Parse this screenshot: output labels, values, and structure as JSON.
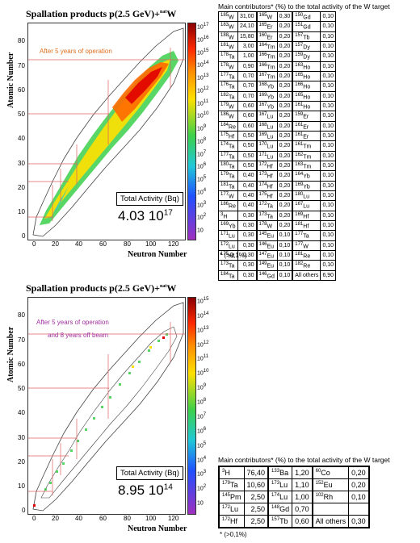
{
  "top_chart": {
    "title": "Spallation products  p(2.5 GeV)+",
    "title_target": "W",
    "title_target_sup": "nat",
    "ylabel": "Atomic Number",
    "xlabel": "Neutron Number",
    "note": "After 5 years of operation",
    "activity_label": "Total Activity (Bq)",
    "activity_mantissa": "4.03 10",
    "activity_exp": "17",
    "xticks": [
      "0",
      "20",
      "40",
      "60",
      "80",
      "100",
      "120"
    ],
    "yticks": [
      "0",
      "10",
      "20",
      "30",
      "40",
      "50",
      "60",
      "70",
      "80"
    ],
    "colorbar": [
      "10",
      "10",
      "10",
      "10",
      "10",
      "10",
      "10",
      "10",
      "10",
      "10",
      "10",
      "10",
      "10",
      "10",
      "10",
      "10",
      "10"
    ],
    "colorbar_exp": [
      "17",
      "16",
      "15",
      "14",
      "13",
      "12",
      "11",
      "10",
      "9",
      "8",
      "7",
      "6",
      "5",
      "4",
      "3",
      "2",
      ""
    ],
    "magic_labels": [
      "82",
      "126",
      "50",
      "82",
      "28",
      "50",
      "20",
      "28",
      "8",
      "20"
    ]
  },
  "bottom_chart": {
    "title": "Spallation products  p(2.5 GeV)+",
    "title_target": "W",
    "title_target_sup": "nat",
    "ylabel": "Atomic Number",
    "xlabel": "Neutron Number",
    "note1": "After 5 years of operation",
    "note2": "and 8 years off beam",
    "activity_label": "Total Activity (Bq)",
    "activity_mantissa": "8.95 10",
    "activity_exp": "14",
    "xticks": [
      "0",
      "20",
      "40",
      "60",
      "80",
      "100",
      "120"
    ],
    "yticks": [
      "0",
      "10",
      "20",
      "30",
      "40",
      "50",
      "60",
      "70",
      "80"
    ],
    "colorbar": [
      "10",
      "10",
      "10",
      "10",
      "10",
      "10",
      "10",
      "10",
      "10",
      "10",
      "10",
      "10",
      "10",
      "10",
      "10"
    ],
    "colorbar_exp": [
      "15",
      "14",
      "13",
      "12",
      "11",
      "10",
      "9",
      "8",
      "7",
      "6",
      "5",
      "4",
      "3",
      "2",
      ""
    ],
    "magic_labels": [
      "82",
      "126",
      "50",
      "82",
      "28",
      "50",
      "20",
      "28",
      "8",
      "20"
    ]
  },
  "table1": {
    "title": "Main contributors* (%) to the total activity of the W target",
    "footnote": "*  (>0,1%)",
    "rows": [
      [
        "185",
        "W",
        "31,00",
        "165",
        "W",
        "0,30",
        "150",
        "Gd",
        "0,10"
      ],
      [
        "183",
        "W",
        "24,10",
        "165",
        "Er",
        "0,20",
        "151",
        "Gd",
        "0,10"
      ],
      [
        "188",
        "W",
        "15,80",
        "160",
        "Er",
        "0,20",
        "157",
        "Tb",
        "0,10"
      ],
      [
        "181",
        "W",
        "3,00",
        "164",
        "Tm",
        "0,20",
        "157",
        "Dy",
        "0,10"
      ],
      [
        "178",
        "Ta",
        "1,00",
        "166",
        "Tm",
        "0,20",
        "159",
        "Dy",
        "0,10"
      ],
      [
        "178",
        "W",
        "0,90",
        "166",
        "Tm",
        "0,20",
        "163",
        "Ho",
        "0,10"
      ],
      [
        "177",
        "Ta",
        "0,70",
        "167",
        "Tm",
        "0,20",
        "165",
        "Ho",
        "0,10"
      ],
      [
        "176",
        "Ta",
        "0,70",
        "168",
        "Yb",
        "0,20",
        "166",
        "Ho",
        "0,10"
      ],
      [
        "182",
        "Ta",
        "0,70",
        "169",
        "Yb",
        "0,20",
        "165",
        "Ho",
        "0,10"
      ],
      [
        "179",
        "W",
        "0,60",
        "167",
        "Yb",
        "0,20",
        "161",
        "Ho",
        "0,10"
      ],
      [
        "186",
        "W",
        "0,60",
        "167",
        "Lu",
        "0,20",
        "159",
        "Er",
        "0,10"
      ],
      [
        "184",
        "Re",
        "0,60",
        "168",
        "Lu",
        "0,20",
        "161",
        "Er",
        "0,10"
      ],
      [
        "175",
        "Hf",
        "0,50",
        "169",
        "Lu",
        "0,20",
        "161",
        "Er",
        "0,10"
      ],
      [
        "174",
        "Ta",
        "0,50",
        "170",
        "Lu",
        "0,20",
        "161",
        "Tm",
        "0,10"
      ],
      [
        "177",
        "Ta",
        "0,50",
        "171",
        "Lu",
        "0,20",
        "162",
        "Tm",
        "0,10"
      ],
      [
        "180",
        "Ta",
        "0,50",
        "172",
        "Hf",
        "0,20",
        "163",
        "Tm",
        "0,10"
      ],
      [
        "179",
        "Ta",
        "0,40",
        "173",
        "Hf",
        "0,20",
        "164",
        "Yb",
        "0,10"
      ],
      [
        "181",
        "Ta",
        "0,40",
        "174",
        "Hf",
        "0,20",
        "169",
        "Yb",
        "0,10"
      ],
      [
        "177",
        "W",
        "0,40",
        "175",
        "Hf",
        "0,20",
        "180",
        "Lu",
        "0,10"
      ],
      [
        "186",
        "Re",
        "0,40",
        "172",
        "Ta",
        "0,20",
        "167",
        "Lu",
        "0,10"
      ],
      [
        "3",
        "H",
        "0,30",
        "173",
        "Ta",
        "0,20",
        "169",
        "Hf",
        "0,10"
      ],
      [
        "169",
        "Yb",
        "0,30",
        "178",
        "W",
        "0,20",
        "181",
        "Hf",
        "0,10"
      ],
      [
        "171",
        "Lu",
        "0,30",
        "145",
        "Eu",
        "0,10",
        "177",
        "Ta",
        "0,10"
      ],
      [
        "172",
        "Lu",
        "0,30",
        "146",
        "Eu",
        "0,10",
        "177",
        "W",
        "0,10"
      ],
      [
        "175",
        "Hf",
        "0,30",
        "147",
        "Eu",
        "0,10",
        "181",
        "Re",
        "0,10"
      ],
      [
        "173",
        "Ta",
        "0,30",
        "149",
        "Eu",
        "0,10",
        "182",
        "Re",
        "0,10"
      ],
      [
        "184",
        "Ta",
        "0,30",
        "146",
        "Gd",
        "0,10",
        "",
        "All others",
        "6,90"
      ]
    ]
  },
  "table2": {
    "title": "Main contributors* (%) to the total activity of the W target",
    "footnote": "*  (>0,1%)",
    "rows": [
      [
        "3",
        "H",
        "76,40",
        "133",
        "Ba",
        "1,20",
        "60",
        "Co",
        "0,20"
      ],
      [
        "179",
        "Ta",
        "10,60",
        "173",
        "Lu",
        "1,10",
        "152",
        "Eu",
        "0,20"
      ],
      [
        "145",
        "Pm",
        "2,50",
        "174",
        "Lu",
        "1,00",
        "102",
        "Rh",
        "0,10"
      ],
      [
        "172",
        "Lu",
        "2,50",
        "148",
        "Gd",
        "0,70",
        "",
        "",
        ""
      ],
      [
        "172",
        "Hf",
        "2,50",
        "157",
        "Tb",
        "0,60",
        "",
        "All others",
        "0,30"
      ]
    ]
  },
  "colors": {
    "cb_top": "#8b0000",
    "cb_hi": "#ff2a00",
    "cb_mid": "#ffe000",
    "cb_green": "#3cd04b",
    "cb_cyan": "#20c8d8",
    "cb_blue": "#2050ff",
    "cb_low": "#a030c0"
  }
}
